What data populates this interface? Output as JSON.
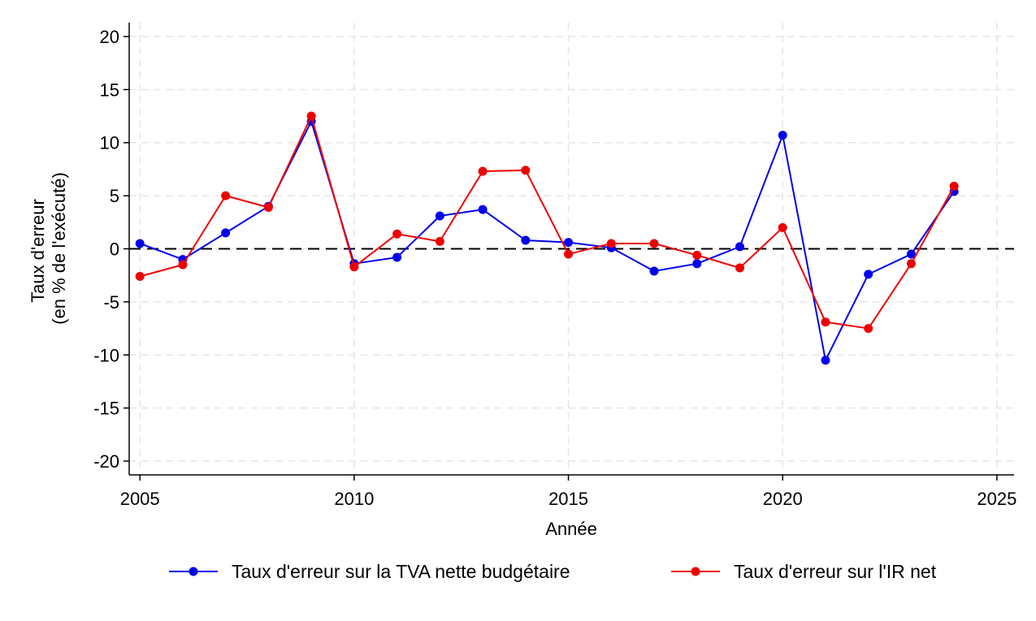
{
  "chart_data": {
    "type": "line",
    "title": "",
    "xlabel": "Année",
    "ylabel": [
      "Taux d'erreur",
      "(en % de l'exécuté)"
    ],
    "xlim": [
      2004.75,
      2025.4
    ],
    "ylim": [
      -21.3,
      21.3
    ],
    "xticks": [
      2005,
      2010,
      2015,
      2020,
      2025
    ],
    "yticks": [
      20,
      15,
      10,
      5,
      0,
      -5,
      -10,
      -15,
      -20
    ],
    "grid": true,
    "reference_line": {
      "y": 0,
      "style": "dashed",
      "color": "#000000"
    },
    "legend_position": "bottom",
    "x": [
      2005,
      2006,
      2007,
      2008,
      2009,
      2010,
      2011,
      2012,
      2013,
      2014,
      2015,
      2016,
      2017,
      2018,
      2019,
      2020,
      2021,
      2022,
      2023,
      2024
    ],
    "series": [
      {
        "name": "Taux d'erreur sur la TVA nette budgétaire",
        "color": "#0000ee",
        "values": [
          0.5,
          -1.0,
          1.5,
          4.0,
          12.0,
          -1.4,
          -0.8,
          3.1,
          3.7,
          0.8,
          0.6,
          0.1,
          -2.1,
          -1.4,
          0.2,
          10.7,
          -10.5,
          -2.4,
          -0.5,
          5.4
        ]
      },
      {
        "name": "Taux d'erreur sur l'IR net",
        "color": "#ee0000",
        "values": [
          -2.6,
          -1.5,
          5.0,
          3.9,
          12.5,
          -1.7,
          1.4,
          0.7,
          7.3,
          7.4,
          -0.5,
          0.5,
          0.5,
          -0.6,
          -1.8,
          2.0,
          -6.9,
          -7.5,
          -1.4,
          5.9
        ]
      }
    ]
  }
}
